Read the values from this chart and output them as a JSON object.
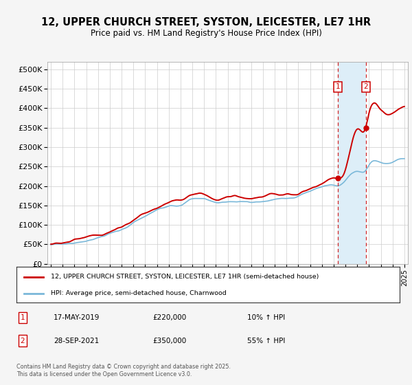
{
  "title": "12, UPPER CHURCH STREET, SYSTON, LEICESTER, LE7 1HR",
  "subtitle": "Price paid vs. HM Land Registry's House Price Index (HPI)",
  "background_color": "#f5f5f5",
  "plot_bg_color": "#ffffff",
  "hpi_line_color": "#7ab8d9",
  "price_line_color": "#cc0000",
  "purchase1": {
    "date": "17-MAY-2019",
    "price": 220000,
    "label": "1",
    "hpi_change": "10% ↑ HPI"
  },
  "purchase2": {
    "date": "28-SEP-2021",
    "price": 350000,
    "label": "2",
    "hpi_change": "55% ↑ HPI"
  },
  "legend_line1": "12, UPPER CHURCH STREET, SYSTON, LEICESTER, LE7 1HR (semi-detached house)",
  "legend_line2": "HPI: Average price, semi-detached house, Charnwood",
  "footer": "Contains HM Land Registry data © Crown copyright and database right 2025.\nThis data is licensed under the Open Government Licence v3.0.",
  "ylim": [
    0,
    520000
  ],
  "yticks": [
    0,
    50000,
    100000,
    150000,
    200000,
    250000,
    300000,
    350000,
    400000,
    450000,
    500000
  ],
  "ytick_labels": [
    "£0",
    "£50K",
    "£100K",
    "£150K",
    "£200K",
    "£250K",
    "£300K",
    "£350K",
    "£400K",
    "£450K",
    "£500K"
  ],
  "xlim_start": 1994.7,
  "xlim_end": 2025.3,
  "xticks": [
    1995,
    1996,
    1997,
    1998,
    1999,
    2000,
    2001,
    2002,
    2003,
    2004,
    2005,
    2006,
    2007,
    2008,
    2009,
    2010,
    2011,
    2012,
    2013,
    2014,
    2015,
    2016,
    2017,
    2018,
    2019,
    2020,
    2021,
    2022,
    2023,
    2024,
    2025
  ],
  "purchase1_x": 2019.37,
  "purchase2_x": 2021.74,
  "shade_color": "#ddeef8"
}
